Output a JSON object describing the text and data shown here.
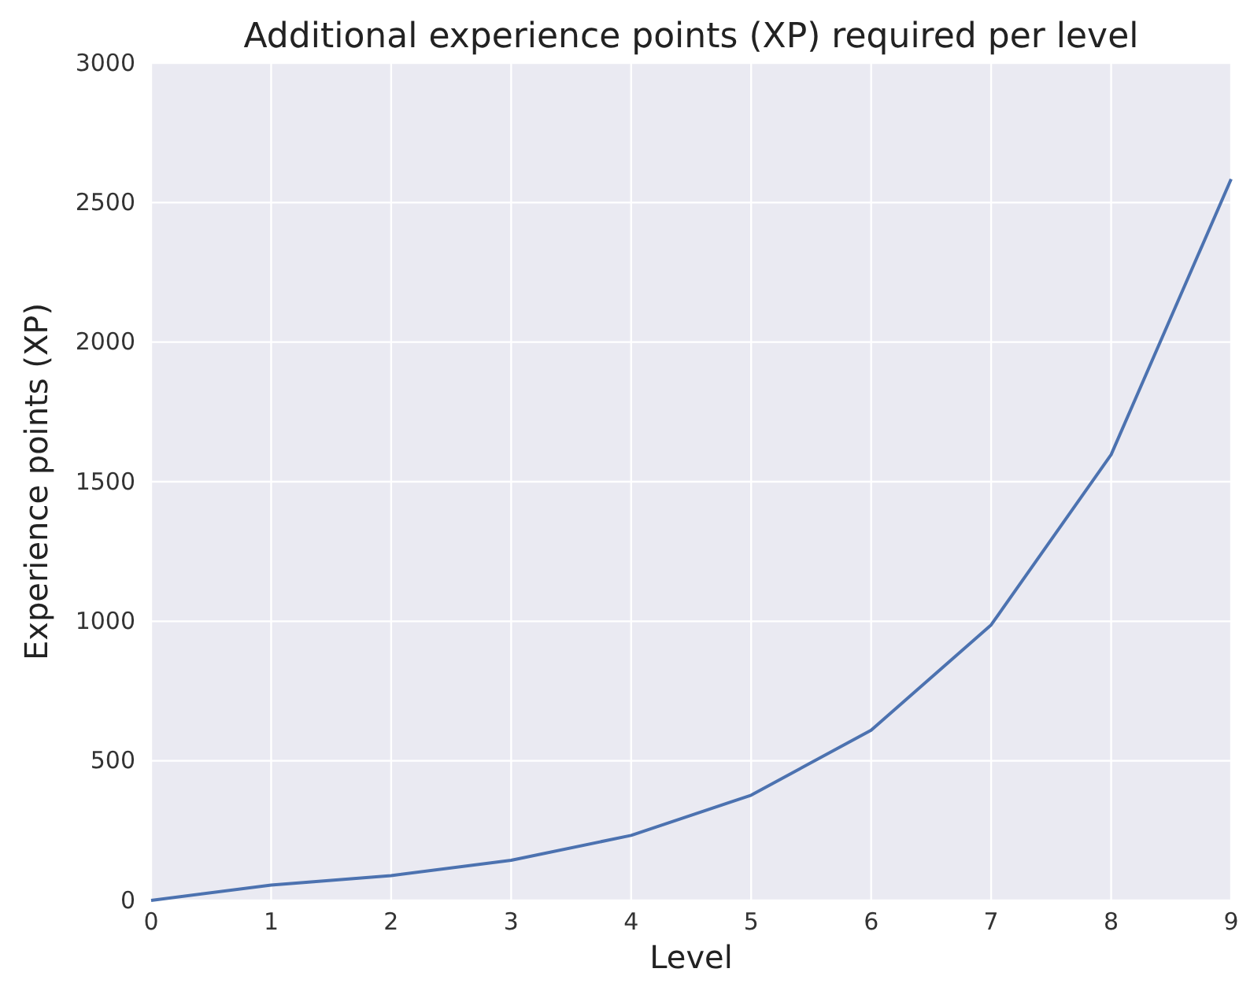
{
  "chart_data": {
    "type": "line",
    "title": "Additional experience points (XP) required per level",
    "xlabel": "Level",
    "ylabel": "Experience points (XP)",
    "x": [
      0,
      1,
      2,
      3,
      4,
      5,
      6,
      7,
      8,
      9
    ],
    "series": [
      {
        "color": "#4c72b0",
        "values": [
          0,
          55,
          89,
          144,
          233,
          377,
          610,
          987,
          1597,
          2584
        ]
      }
    ],
    "xlim": [
      0,
      9
    ],
    "xticks": [
      0,
      1,
      2,
      3,
      4,
      5,
      6,
      7,
      8,
      9
    ],
    "ylim": [
      0,
      3000
    ],
    "yticks": [
      0,
      500,
      1000,
      1500,
      2000,
      2500,
      3000
    ],
    "grid": true
  }
}
